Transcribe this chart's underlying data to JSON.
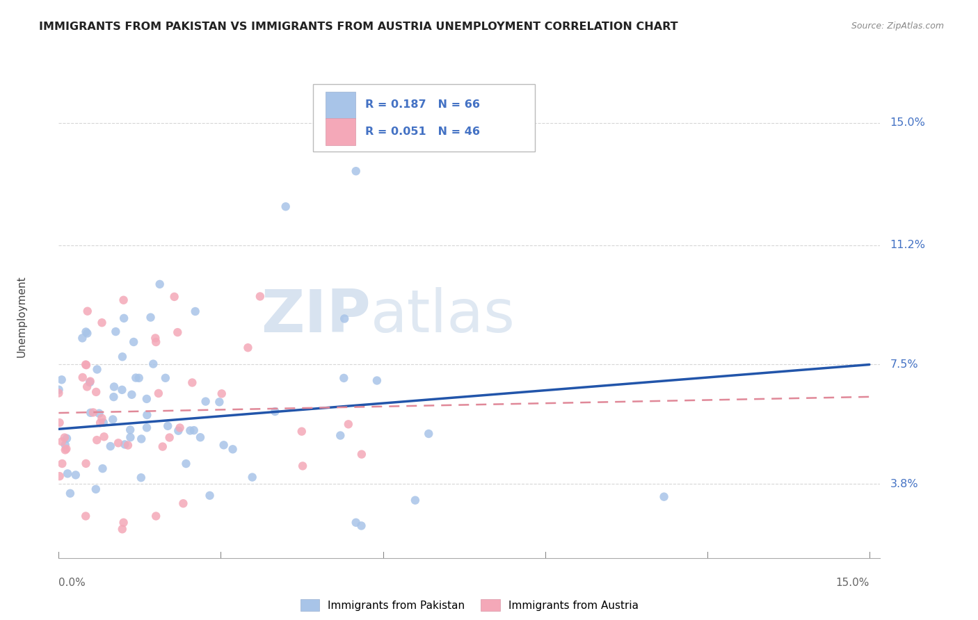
{
  "title": "IMMIGRANTS FROM PAKISTAN VS IMMIGRANTS FROM AUSTRIA UNEMPLOYMENT CORRELATION CHART",
  "source": "Source: ZipAtlas.com",
  "ylabel": "Unemployment",
  "y_ticks": [
    0.038,
    0.075,
    0.112,
    0.15
  ],
  "y_tick_labels": [
    "3.8%",
    "7.5%",
    "11.2%",
    "15.0%"
  ],
  "x_min": 0.0,
  "x_max": 0.15,
  "y_min": 0.015,
  "y_max": 0.165,
  "pakistan_color": "#a8c4e8",
  "austria_color": "#f4a8b8",
  "pakistan_line_color": "#2255aa",
  "austria_line_color": "#e08898",
  "pakistan_R": 0.187,
  "austria_R": 0.051,
  "pakistan_N": 66,
  "austria_N": 46,
  "grid_color": "#cccccc",
  "axis_label_color": "#4472c4",
  "title_color": "#222222",
  "legend_box_color": "#dddddd",
  "watermark_zip_color": "#c8d8ee",
  "watermark_atlas_color": "#c8d8ee"
}
